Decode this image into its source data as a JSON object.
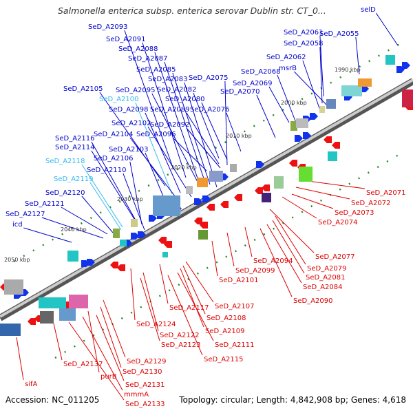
{
  "title": "Salmonella enterica subsp. enterica serovar Dublin str. CT_0...",
  "footer": {
    "accession": "Accession: NC_011205",
    "topology": "Topology: circular; Length: 4,842,908 bp; Genes: 4,618"
  },
  "colors": {
    "forward_label": "#0000cc",
    "highlight_label": "#33bbee",
    "reverse_label": "#dd0000",
    "backbone": "#888888",
    "tick": "#228822"
  },
  "scale_labels": [
    "1990 kbp",
    "2000 kbp",
    "2010 kbp",
    "2020 kbp",
    "2030 kbp",
    "2040 kbp",
    "2050 kbp"
  ],
  "forward_genes": [
    "selD",
    "SeD_A2093",
    "SeD_A2061",
    "SeD_A2055",
    "SeD_A2091",
    "SeD_A2058",
    "SeD_A2088",
    "SeD_A2062",
    "SeD_A2087",
    "msrB",
    "SeD_A2085",
    "SeD_A2068",
    "SeD_A2083",
    "SeD_A2075",
    "SeD_A2069",
    "SeD_A2105",
    "SeD_A2082",
    "SeD_A2095",
    "SeD_A2070",
    "SeD_A2100",
    "SeD_A2080",
    "SeD_A2098",
    "SeD_A2089",
    "SeD_A2076",
    "SeD_A2102",
    "SeD_A2092",
    "SeD_A2104",
    "SeD_A2096",
    "SeD_A2116",
    "SeD_A2114",
    "SeD_A2103",
    "SeD_A2106",
    "SeD_A2118",
    "SeD_A2110",
    "SeD_A2119",
    "SeD_A2120",
    "SeD_A2121",
    "SeD_A2127",
    "icd"
  ],
  "reverse_genes": [
    "SeD_A2071",
    "SeD_A2072",
    "SeD_A2073",
    "SeD_A2074",
    "SeD_A2077",
    "SeD_A2094",
    "SeD_A2079",
    "SeD_A2099",
    "SeD_A2081",
    "SeD_A2101",
    "SeD_A2084",
    "SeD_A2090",
    "SeD_A2107",
    "SeD_A2117",
    "SeD_A2108",
    "SeD_A2124",
    "SeD_A2109",
    "SeD_A2122",
    "SeD_A2111",
    "SeD_A2123",
    "SeD_A2115",
    "SeD_A2129",
    "SeD_A2137",
    "SeD_A2130",
    "purB",
    "SeD_A2131",
    "mmmA",
    "SeD_A2133",
    "sifA"
  ]
}
